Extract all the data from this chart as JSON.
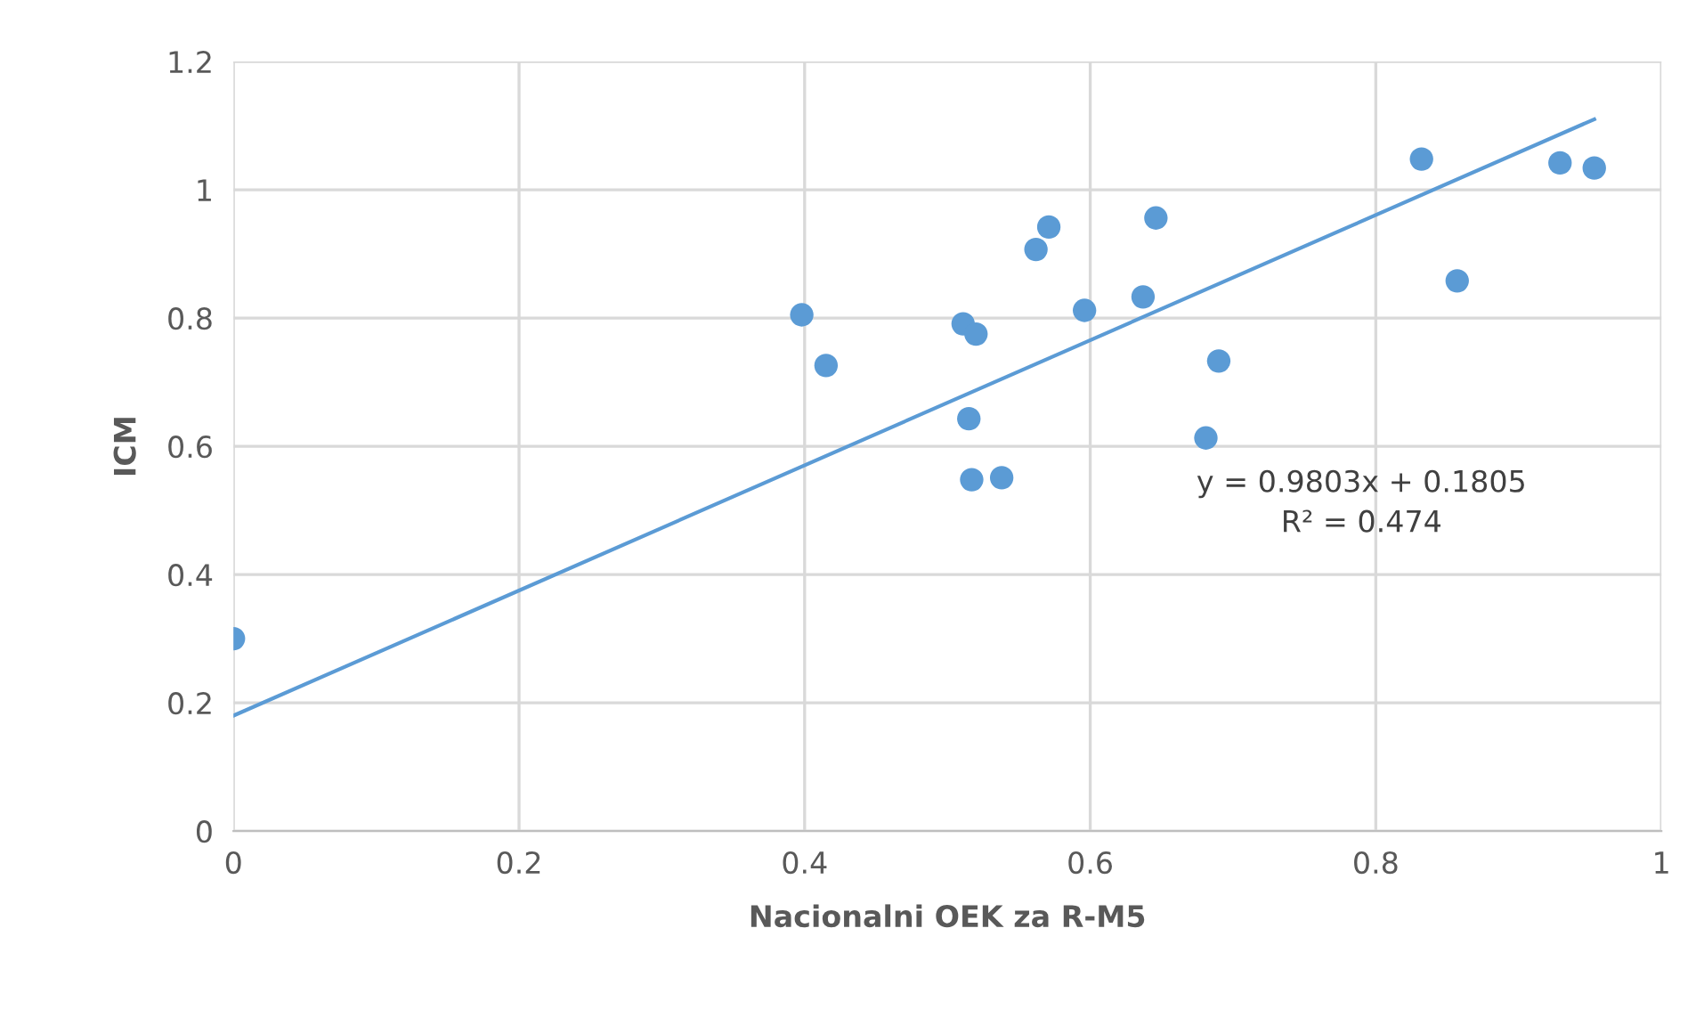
{
  "chart_data": {
    "type": "scatter",
    "xlabel": "Nacionalni OEK za R-M5",
    "ylabel": "ICM",
    "xlim": [
      0,
      1
    ],
    "xticks": [
      0,
      0.2,
      0.4,
      0.6,
      0.8,
      1
    ],
    "ylim": [
      0,
      1.2
    ],
    "yticks": [
      0,
      0.2,
      0.4,
      0.6,
      0.8,
      1,
      1.2
    ],
    "grid": true,
    "series": [
      {
        "marker": "circle",
        "color": "#5b9bd5",
        "x": [
          0,
          0.398,
          0.415,
          0.511,
          0.52,
          0.515,
          0.517,
          0.538,
          0.562,
          0.571,
          0.596,
          0.637,
          0.646,
          0.69,
          0.681,
          0.832,
          0.857,
          0.929,
          0.953
        ],
        "values": [
          0.3,
          0.805,
          0.726,
          0.791,
          0.775,
          0.643,
          0.548,
          0.551,
          0.907,
          0.942,
          0.812,
          0.833,
          0.956,
          0.733,
          0.613,
          1.048,
          0.858,
          1.042,
          1.034
        ]
      },
      {
        "type": "line",
        "color": "#5b9bd5",
        "x": [
          0,
          0.953
        ],
        "values": [
          0.18,
          1.11
        ]
      }
    ],
    "annotations": [
      "y = 0.9803x + 0.1805\nR² = 0.474"
    ]
  }
}
